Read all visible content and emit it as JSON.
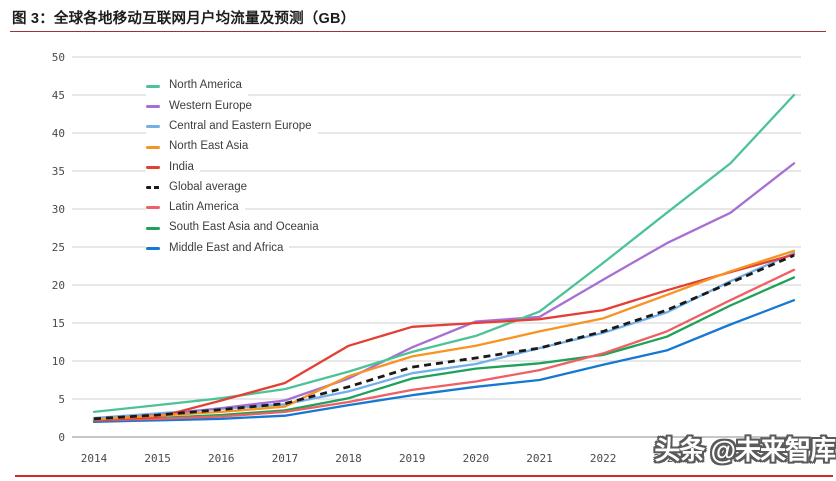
{
  "figure": {
    "title": "图 3：全球各地移动互联网月户均流量及预测（GB）",
    "watermark": "头条 @未来智库"
  },
  "accents": {
    "title_underline_color": "#9c3434",
    "bottom_rule_color": "#cc2b2b",
    "gridline_color": "#cfcfcf",
    "baseline_color": "#8f8f8f"
  },
  "chart_data": {
    "type": "line",
    "title": "全球各地移动互联网月户均流量及预测（GB）",
    "xlabel": "",
    "ylabel": "",
    "x": [
      2014,
      2015,
      2016,
      2017,
      2018,
      2019,
      2020,
      2021,
      2022,
      2023,
      2024,
      2025
    ],
    "x_tick_labels": [
      "2014",
      "2015",
      "2016",
      "2017",
      "2018",
      "2019",
      "2020",
      "2021",
      "2022",
      "2023"
    ],
    "y_ticks": [
      0,
      5,
      10,
      15,
      20,
      25,
      30,
      35,
      40,
      45,
      50
    ],
    "ylim": [
      0,
      50
    ],
    "grid": "horizontal",
    "legend_position": "inside-top-left",
    "series": [
      {
        "name": "North America",
        "color": "#4cc397",
        "dashed": false,
        "values": [
          3.3,
          4.2,
          5.1,
          6.3,
          8.6,
          11.2,
          13.3,
          16.5,
          22.9,
          29.5,
          36.0,
          45.0
        ]
      },
      {
        "name": "Western Europe",
        "color": "#a76fd4",
        "dashed": false,
        "values": [
          2.3,
          2.9,
          3.8,
          4.8,
          7.7,
          11.8,
          15.2,
          15.8,
          20.7,
          25.5,
          29.5,
          36.0
        ]
      },
      {
        "name": "Central and Eastern Europe",
        "color": "#74b0e8",
        "dashed": false,
        "values": [
          2.5,
          3.1,
          3.7,
          4.3,
          6.0,
          8.4,
          9.6,
          11.7,
          13.7,
          16.4,
          20.5,
          24.2
        ]
      },
      {
        "name": "North East Asia",
        "color": "#f79421",
        "dashed": false,
        "values": [
          2.3,
          2.8,
          3.3,
          4.0,
          8.0,
          10.6,
          12.0,
          13.9,
          15.6,
          18.7,
          21.8,
          24.5
        ]
      },
      {
        "name": "India",
        "color": "#e43f35",
        "dashed": false,
        "values": [
          2.2,
          2.6,
          4.8,
          7.1,
          12.0,
          14.5,
          15.0,
          15.5,
          16.7,
          19.3,
          21.7,
          24.0
        ]
      },
      {
        "name": "Global average",
        "color": "#1a1a1a",
        "dashed": true,
        "values": [
          2.4,
          2.9,
          3.6,
          4.4,
          6.6,
          9.2,
          10.4,
          11.7,
          13.9,
          16.7,
          20.3,
          23.9
        ]
      },
      {
        "name": "Latin America",
        "color": "#ef5f63",
        "dashed": false,
        "values": [
          2.2,
          2.4,
          2.7,
          3.3,
          4.6,
          6.2,
          7.3,
          8.8,
          11.0,
          13.9,
          18.0,
          22.0
        ]
      },
      {
        "name": "South East Asia and Oceania",
        "color": "#1ea25a",
        "dashed": false,
        "values": [
          2.2,
          2.5,
          2.9,
          3.5,
          5.1,
          7.7,
          9.0,
          9.7,
          10.8,
          13.2,
          17.3,
          21.0
        ]
      },
      {
        "name": "Middle East and Africa",
        "color": "#1778d2",
        "dashed": false,
        "values": [
          2.0,
          2.2,
          2.4,
          2.8,
          4.2,
          5.5,
          6.6,
          7.5,
          9.5,
          11.4,
          14.8,
          18.0
        ]
      }
    ]
  }
}
